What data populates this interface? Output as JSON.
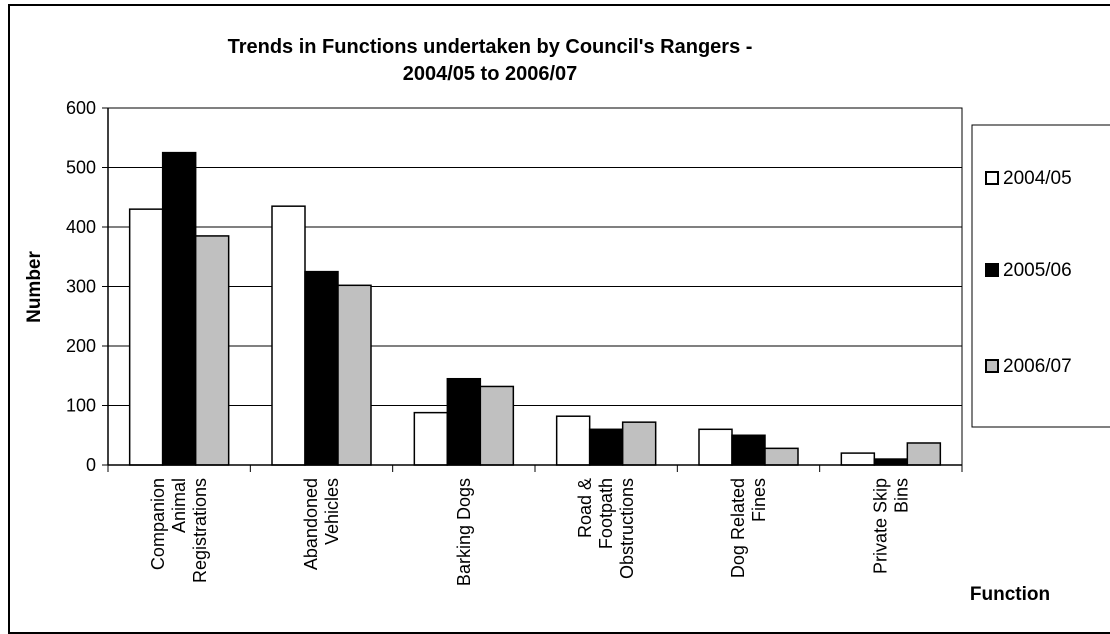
{
  "chart_data": {
    "type": "bar",
    "title": "Trends in Functions undertaken by Council's Rangers -",
    "subtitle": "2004/05 to 2006/07",
    "ylabel": "Number",
    "xlabel": "Function",
    "ylim": [
      0,
      600
    ],
    "yticks": [
      "0",
      "100",
      "200",
      "300",
      "400",
      "500",
      "600"
    ],
    "grid": true,
    "legend_position": "right",
    "categories": [
      [
        "Companion",
        "Animal",
        "Registrations"
      ],
      [
        "Abandoned",
        "Vehicles"
      ],
      [
        "Barking Dogs"
      ],
      [
        "Road &",
        "Footpath",
        "Obstructions"
      ],
      [
        "Dog Related",
        "Fines"
      ],
      [
        "Private Skip",
        "Bins"
      ]
    ],
    "series": [
      {
        "name": "2004/05",
        "color": "#ffffff",
        "values": [
          430,
          435,
          88,
          82,
          60,
          20
        ]
      },
      {
        "name": "2005/06",
        "color": "#000000",
        "values": [
          525,
          325,
          145,
          60,
          50,
          10
        ]
      },
      {
        "name": "2006/07",
        "color": "#c0c0c0",
        "values": [
          385,
          302,
          132,
          72,
          28,
          37
        ]
      }
    ]
  }
}
